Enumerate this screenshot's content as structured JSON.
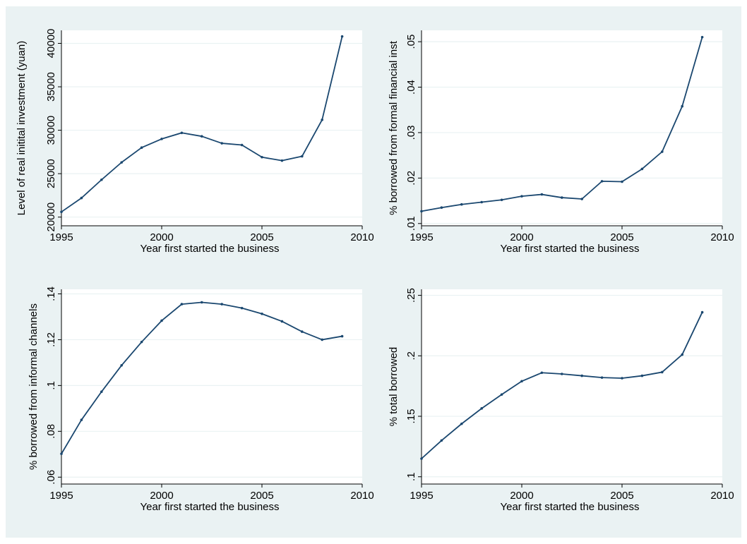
{
  "colors": {
    "background": "#eaf2f3",
    "plot_bg": "#ffffff",
    "line": "#1a476f",
    "axis": "#000000"
  },
  "chart_data": [
    {
      "type": "line",
      "title": "",
      "xlabel": "Year first started the business",
      "ylabel": "Level of real initital investment (yuan)",
      "xlim": [
        1995,
        2010
      ],
      "ylim": [
        19000,
        41500
      ],
      "xticks": [
        1995,
        2000,
        2005,
        2010
      ],
      "xtick_labels": [
        "1995",
        "2000",
        "2005",
        "2010"
      ],
      "yticks": [
        20000,
        25000,
        30000,
        35000,
        40000
      ],
      "ytick_labels": [
        "20000",
        "25000",
        "30000",
        "35000",
        "40000"
      ],
      "grid": true,
      "series": [
        {
          "x": [
            1995,
            1996,
            1997,
            1998,
            1999,
            2000,
            2001,
            2002,
            2003,
            2004,
            2005,
            2006,
            2007,
            2008,
            2009
          ],
          "y": [
            20600,
            22200,
            24300,
            26300,
            28000,
            29000,
            29700,
            29300,
            28500,
            28300,
            26900,
            26500,
            27000,
            31200,
            40800
          ]
        }
      ]
    },
    {
      "type": "line",
      "title": "",
      "xlabel": "Year first started the business",
      "ylabel": "% borrowed from formal financial inst",
      "xlim": [
        1995,
        2010
      ],
      "ylim": [
        0.0095,
        0.0525
      ],
      "xticks": [
        1995,
        2000,
        2005,
        2010
      ],
      "xtick_labels": [
        "1995",
        "2000",
        "2005",
        "2010"
      ],
      "yticks": [
        0.01,
        0.02,
        0.03,
        0.04,
        0.05
      ],
      "ytick_labels": [
        ".01",
        ".02",
        ".03",
        ".04",
        ".05"
      ],
      "grid": true,
      "series": [
        {
          "x": [
            1995,
            1996,
            1997,
            1998,
            1999,
            2000,
            2001,
            2002,
            2003,
            2004,
            2005,
            2006,
            2007,
            2008,
            2009
          ],
          "y": [
            0.0127,
            0.0135,
            0.0142,
            0.0147,
            0.0152,
            0.016,
            0.0164,
            0.0157,
            0.0154,
            0.0193,
            0.0192,
            0.022,
            0.0258,
            0.0358,
            0.051
          ]
        }
      ]
    },
    {
      "type": "line",
      "title": "",
      "xlabel": "Year first started the business",
      "ylabel": "% borrowed from informal channels",
      "xlim": [
        1995,
        2010
      ],
      "ylim": [
        0.057,
        0.142
      ],
      "xticks": [
        1995,
        2000,
        2005,
        2010
      ],
      "xtick_labels": [
        "1995",
        "2000",
        "2005",
        "2010"
      ],
      "yticks": [
        0.06,
        0.08,
        0.1,
        0.12,
        0.14
      ],
      "ytick_labels": [
        ".06",
        ".08",
        ".1",
        ".12",
        ".14"
      ],
      "grid": true,
      "series": [
        {
          "x": [
            1995,
            1996,
            1997,
            1998,
            1999,
            2000,
            2001,
            2002,
            2003,
            2004,
            2005,
            2006,
            2007,
            2008,
            2009
          ],
          "y": [
            0.0702,
            0.085,
            0.0973,
            0.1088,
            0.119,
            0.1283,
            0.1355,
            0.1363,
            0.1355,
            0.1338,
            0.1313,
            0.128,
            0.1235,
            0.12,
            0.1215
          ]
        }
      ]
    },
    {
      "type": "line",
      "title": "",
      "xlabel": "Year first started the business",
      "ylabel": "% total borrowed",
      "xlim": [
        1995,
        2010
      ],
      "ylim": [
        0.094,
        0.255
      ],
      "xticks": [
        1995,
        2000,
        2005,
        2010
      ],
      "xtick_labels": [
        "1995",
        "2000",
        "2005",
        "2010"
      ],
      "yticks": [
        0.1,
        0.15,
        0.2,
        0.25
      ],
      "ytick_labels": [
        ".1",
        ".15",
        ".2",
        ".25"
      ],
      "grid": true,
      "series": [
        {
          "x": [
            1995,
            1996,
            1997,
            1998,
            1999,
            2000,
            2001,
            2002,
            2003,
            2004,
            2005,
            2006,
            2007,
            2008,
            2009
          ],
          "y": [
            0.115,
            0.13,
            0.1438,
            0.1565,
            0.168,
            0.179,
            0.186,
            0.185,
            0.1835,
            0.182,
            0.1815,
            0.1835,
            0.1865,
            0.201,
            0.236
          ]
        }
      ]
    }
  ]
}
